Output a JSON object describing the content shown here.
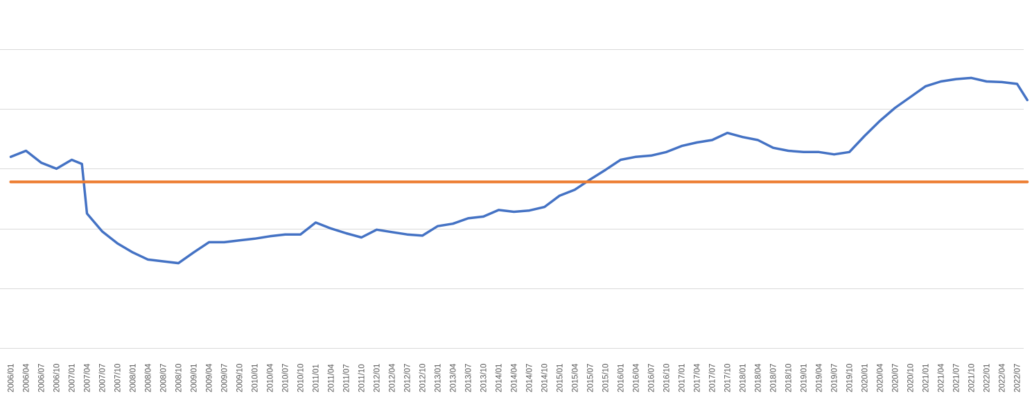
{
  "chart_data": {
    "type": "line",
    "title": "",
    "xlabel": "",
    "ylabel": "",
    "grid": true,
    "legend": "none",
    "y_axis_labels_visible": false,
    "x_tick_labels": [
      "2006/01",
      "2006/04",
      "2006/07",
      "2006/10",
      "2007/01",
      "2007/04",
      "2007/07",
      "2007/10",
      "2008/01",
      "2008/04",
      "2008/07",
      "2008/10",
      "2009/01",
      "2009/04",
      "2009/07",
      "2009/10",
      "2010/01",
      "2010/04",
      "2010/07",
      "2010/10",
      "2011/01",
      "2011/04",
      "2011/07",
      "2011/10",
      "2012/01",
      "2012/04",
      "2012/07",
      "2012/10",
      "2013/01",
      "2013/04",
      "2013/07",
      "2013/10",
      "2014/01",
      "2014/04",
      "2014/07",
      "2014/10",
      "2015/01",
      "2015/04",
      "2015/07",
      "2015/10",
      "2016/01",
      "2016/04",
      "2016/07",
      "2016/10",
      "2017/01",
      "2017/04",
      "2017/07",
      "2017/10",
      "2018/01",
      "2018/04",
      "2018/07",
      "2018/10",
      "2019/01",
      "2019/04",
      "2019/07",
      "2019/10",
      "2020/01",
      "2020/04",
      "2020/07",
      "2020/10",
      "2021/01",
      "2021/04",
      "2021/07",
      "2021/10",
      "2022/01",
      "2022/04",
      "2022/07"
    ],
    "ylim": [
      0,
      5
    ],
    "gridline_values": [
      0,
      1,
      2,
      3,
      4,
      5
    ],
    "series": [
      {
        "color": "#4472C4",
        "x": [
          "2006/01",
          "2006/04",
          "2006/07",
          "2006/10",
          "2007/01",
          "2007/03",
          "2007/04",
          "2007/07",
          "2007/10",
          "2008/01",
          "2008/04",
          "2008/07",
          "2008/10",
          "2009/01",
          "2009/04",
          "2009/07",
          "2009/10",
          "2010/01",
          "2010/04",
          "2010/07",
          "2010/10",
          "2011/01",
          "2011/04",
          "2011/07",
          "2011/10",
          "2012/01",
          "2012/04",
          "2012/07",
          "2012/10",
          "2013/01",
          "2013/04",
          "2013/07",
          "2013/10",
          "2014/01",
          "2014/04",
          "2014/07",
          "2014/10",
          "2015/01",
          "2015/04",
          "2015/07",
          "2015/10",
          "2016/01",
          "2016/04",
          "2016/07",
          "2016/10",
          "2017/01",
          "2017/04",
          "2017/07",
          "2017/10",
          "2018/01",
          "2018/04",
          "2018/07",
          "2018/10",
          "2019/01",
          "2019/04",
          "2019/07",
          "2019/10",
          "2020/01",
          "2020/04",
          "2020/07",
          "2020/10",
          "2021/01",
          "2021/04",
          "2021/07",
          "2021/10",
          "2022/01",
          "2022/04",
          "2022/07",
          "2022/09"
        ],
        "values": [
          3.2,
          3.3,
          3.1,
          3.0,
          3.15,
          3.08,
          2.25,
          1.95,
          1.75,
          1.6,
          1.48,
          1.45,
          1.42,
          1.6,
          1.77,
          1.77,
          1.8,
          1.83,
          1.87,
          1.9,
          1.9,
          2.1,
          2.0,
          1.92,
          1.85,
          1.98,
          1.94,
          1.9,
          1.88,
          2.04,
          2.08,
          2.17,
          2.2,
          2.31,
          2.28,
          2.3,
          2.36,
          2.55,
          2.65,
          2.82,
          2.98,
          3.15,
          3.2,
          3.22,
          3.28,
          3.38,
          3.44,
          3.48,
          3.6,
          3.53,
          3.48,
          3.35,
          3.3,
          3.28,
          3.28,
          3.24,
          3.28,
          3.55,
          3.8,
          4.02,
          4.2,
          4.38,
          4.46,
          4.5,
          4.52,
          4.46,
          4.45,
          4.42,
          4.15
        ]
      },
      {
        "color": "#ED7D31",
        "x": [
          "2006/01",
          "2022/09"
        ],
        "values": [
          2.78,
          2.78
        ]
      }
    ]
  }
}
